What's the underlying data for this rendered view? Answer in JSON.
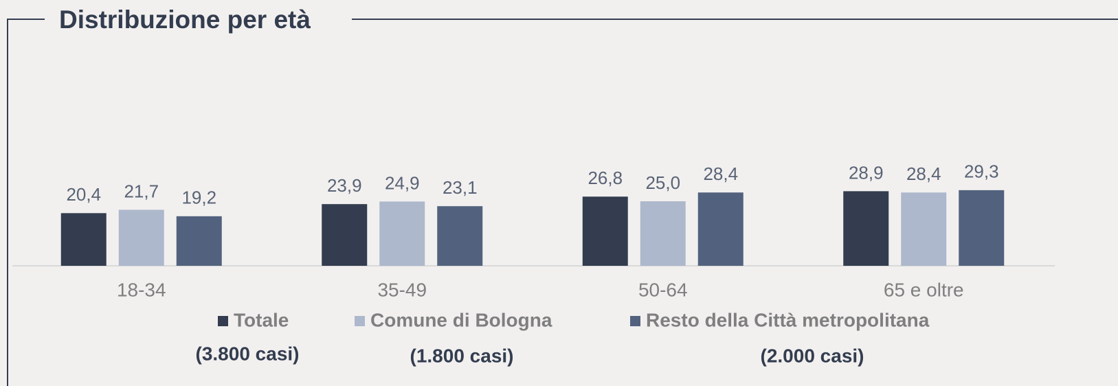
{
  "chart_data": {
    "type": "bar",
    "title": "Distribuzione per età",
    "categories": [
      "18-34",
      "35-49",
      "50-64",
      "65 e oltre"
    ],
    "series": [
      {
        "name": "Totale",
        "color": "#333d4f",
        "note": "(3.800 casi)",
        "values": [
          20.4,
          23.9,
          26.8,
          28.9
        ],
        "value_labels": [
          "20,4",
          "23,9",
          "26,8",
          "28,9"
        ]
      },
      {
        "name": "Comune di Bologna",
        "color": "#adb8cc",
        "note": "(1.800 casi)",
        "values": [
          21.7,
          24.9,
          25.0,
          28.4
        ],
        "value_labels": [
          "21,7",
          "24,9",
          "25,0",
          "28,4"
        ]
      },
      {
        "name": "Resto della Città metropolitana",
        "color": "#52627e",
        "note": "(2.000 casi)",
        "values": [
          19.2,
          23.1,
          28.4,
          29.3
        ],
        "value_labels": [
          "19,2",
          "23,1",
          "28,4",
          "29,3"
        ]
      }
    ],
    "ylim": [
      0,
      87
    ],
    "legend": "bottom"
  }
}
